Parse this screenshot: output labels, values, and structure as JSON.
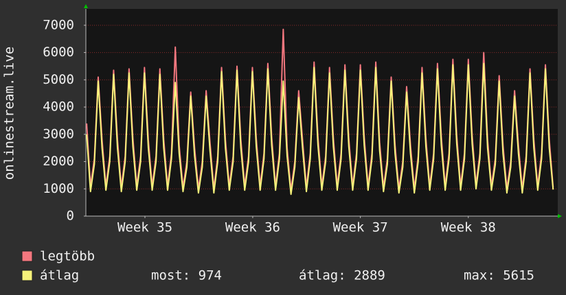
{
  "chart_data": {
    "type": "line",
    "y_label": "onlinestream.live",
    "xlim": [
      0,
      30.6
    ],
    "xticks": [
      {
        "value": 3.83,
        "label": "Week 35"
      },
      {
        "value": 10.82,
        "label": "Week 36"
      },
      {
        "value": 17.8,
        "label": "Week 37"
      },
      {
        "value": 24.8,
        "label": "Week 38"
      }
    ],
    "ylim": [
      0,
      7600
    ],
    "yticks": [
      0,
      1000,
      2000,
      3000,
      4000,
      5000,
      6000,
      7000
    ],
    "grid": true,
    "x": [
      0.05,
      0.3,
      0.55,
      0.8,
      1.05,
      1.3,
      1.55,
      1.8,
      2.05,
      2.3,
      2.55,
      2.8,
      3.05,
      3.3,
      3.55,
      3.8,
      4.05,
      4.3,
      4.55,
      4.8,
      5.05,
      5.3,
      5.55,
      5.8,
      6.05,
      6.3,
      6.55,
      6.8,
      7.05,
      7.3,
      7.55,
      7.8,
      8.05,
      8.3,
      8.55,
      8.8,
      9.05,
      9.3,
      9.55,
      9.8,
      10.05,
      10.3,
      10.55,
      10.8,
      11.05,
      11.3,
      11.55,
      11.8,
      12.05,
      12.3,
      12.55,
      12.8,
      13.05,
      13.3,
      13.55,
      13.8,
      14.05,
      14.3,
      14.55,
      14.8,
      15.05,
      15.3,
      15.55,
      15.8,
      16.05,
      16.3,
      16.55,
      16.8,
      17.05,
      17.3,
      17.55,
      17.8,
      18.05,
      18.3,
      18.55,
      18.8,
      19.05,
      19.3,
      19.55,
      19.8,
      20.05,
      20.3,
      20.55,
      20.8,
      21.05,
      21.3,
      21.55,
      21.8,
      22.05,
      22.3,
      22.55,
      22.8,
      23.05,
      23.3,
      23.55,
      23.8,
      24.05,
      24.3,
      24.55,
      24.8,
      25.05,
      25.3,
      25.55,
      25.8,
      26.05,
      26.3,
      26.55,
      26.8,
      27.05,
      27.3,
      27.55,
      27.8,
      28.05,
      28.3,
      28.55,
      28.8,
      29.05,
      29.3,
      29.55,
      29.8,
      30.05,
      30.3
    ],
    "series": [
      {
        "name": "legtöbb",
        "color": "#f4777f",
        "values": [
          3400,
          1100,
          2100,
          5100,
          2800,
          1100,
          2200,
          5350,
          2800,
          1050,
          2200,
          5400,
          2850,
          1100,
          2200,
          5450,
          2800,
          1100,
          2200,
          5400,
          2800,
          1100,
          2300,
          6200,
          2600,
          1050,
          2000,
          4550,
          2500,
          1000,
          2000,
          4600,
          2700,
          1000,
          2200,
          5450,
          2800,
          1100,
          2200,
          5500,
          2800,
          1100,
          2200,
          5450,
          2850,
          1100,
          2300,
          5600,
          2900,
          1100,
          2300,
          6850,
          2500,
          950,
          2000,
          4600,
          2800,
          1050,
          2300,
          5650,
          2900,
          1100,
          2200,
          5450,
          2850,
          1100,
          2300,
          5550,
          2850,
          1100,
          2300,
          5550,
          2900,
          1100,
          2300,
          5650,
          2700,
          1050,
          2100,
          5100,
          2600,
          1000,
          2000,
          4750,
          2600,
          1000,
          2200,
          5450,
          2850,
          1100,
          2300,
          5600,
          2900,
          1100,
          2300,
          5750,
          2950,
          1100,
          2300,
          5750,
          2950,
          1150,
          2300,
          6000,
          2800,
          1100,
          2100,
          5150,
          2600,
          1000,
          2000,
          4600,
          2600,
          1000,
          2200,
          5400,
          2800,
          1100,
          2300,
          5550,
          2800,
          1050
        ]
      },
      {
        "name": "átlag",
        "color": "#f6f27a",
        "values": [
          3000,
          900,
          1900,
          4950,
          2500,
          950,
          2000,
          5200,
          2500,
          900,
          2000,
          5250,
          2550,
          950,
          2000,
          5250,
          2500,
          950,
          2000,
          5200,
          2500,
          950,
          2100,
          4900,
          2300,
          900,
          1800,
          4400,
          2200,
          850,
          1800,
          4400,
          2400,
          850,
          2000,
          5300,
          2500,
          950,
          2000,
          5350,
          2500,
          950,
          2000,
          5300,
          2550,
          950,
          2100,
          5400,
          2600,
          950,
          2100,
          4950,
          2200,
          800,
          1800,
          4350,
          2500,
          900,
          2100,
          5450,
          2600,
          950,
          2000,
          5250,
          2550,
          950,
          2100,
          5350,
          2550,
          950,
          2100,
          5350,
          2600,
          950,
          2100,
          5450,
          2400,
          900,
          1900,
          4950,
          2300,
          850,
          1800,
          4550,
          2300,
          850,
          2000,
          5250,
          2550,
          950,
          2100,
          5400,
          2600,
          950,
          2100,
          5550,
          2650,
          950,
          2100,
          5550,
          2650,
          1000,
          2100,
          5600,
          2500,
          950,
          1900,
          4950,
          2300,
          850,
          1800,
          4400,
          2300,
          850,
          2000,
          5250,
          2500,
          950,
          2100,
          5400,
          2500,
          974
        ]
      }
    ],
    "stats": [
      "most: 974",
      "átlag: 2889",
      "max: 5615"
    ]
  }
}
